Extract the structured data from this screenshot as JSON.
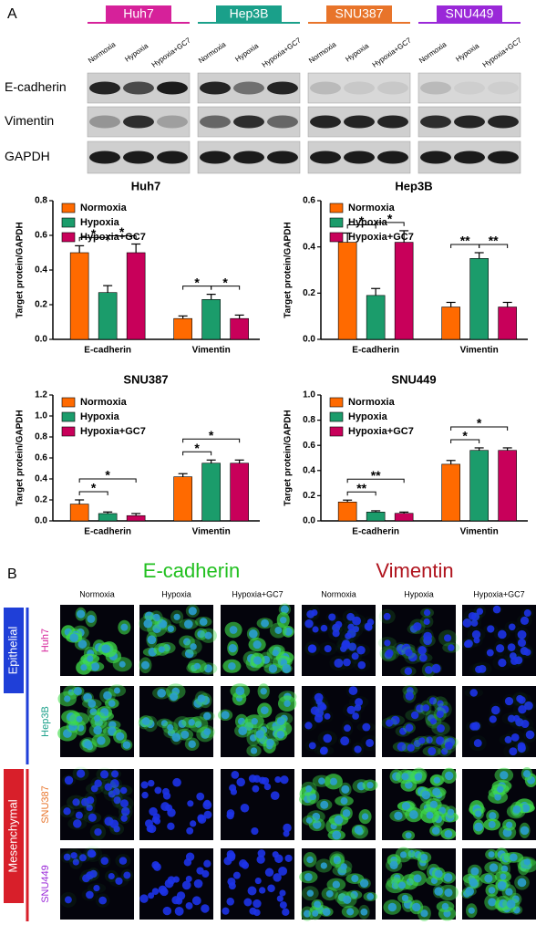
{
  "panel_a": {
    "label": "A",
    "cell_lines": [
      "Huh7",
      "Hep3B",
      "SNU387",
      "SNU449"
    ],
    "cell_line_colors": [
      "#d6219a",
      "#1aa08a",
      "#e8742a",
      "#9a28d8"
    ],
    "conditions": [
      "Normoxia",
      "Hypoxia",
      "Hypoxia+GC7"
    ],
    "proteins": [
      "E-cadherin",
      "Vimentin",
      "GAPDH"
    ]
  },
  "chart_data": [
    {
      "type": "bar",
      "title": "Huh7",
      "y_label": "Target protein/GAPDH",
      "categories": [
        "E-cadherin",
        "Vimentin"
      ],
      "series": [
        {
          "name": "Normoxia",
          "color": "#ff6a00",
          "values": [
            0.5,
            0.12
          ],
          "errors": [
            0.04,
            0.015
          ]
        },
        {
          "name": "Hypoxia",
          "color": "#1b9c6b",
          "values": [
            0.27,
            0.23
          ],
          "errors": [
            0.04,
            0.03
          ]
        },
        {
          "name": "Hypoxia+GC7",
          "color": "#c8005a",
          "values": [
            0.5,
            0.12
          ],
          "errors": [
            0.05,
            0.02
          ]
        }
      ],
      "ylim": [
        0,
        0.8
      ],
      "yticks": [
        {
          "value": 0,
          "label": "0.0"
        },
        0.2,
        0.4,
        0.6,
        0.8
      ],
      "annotations": [
        "*",
        "*",
        "*",
        "*"
      ]
    },
    {
      "type": "bar",
      "title": "Hep3B",
      "y_label": "Target protein/GAPDH",
      "categories": [
        "E-cadherin",
        "Vimentin"
      ],
      "series": [
        {
          "name": "Normoxia",
          "color": "#ff6a00",
          "values": [
            0.42,
            0.14
          ],
          "errors": [
            0.04,
            0.02
          ]
        },
        {
          "name": "Hypoxia",
          "color": "#1b9c6b",
          "values": [
            0.19,
            0.35
          ],
          "errors": [
            0.03,
            0.025
          ]
        },
        {
          "name": "Hypoxia+GC7",
          "color": "#c8005a",
          "values": [
            0.42,
            0.14
          ],
          "errors": [
            0.05,
            0.02
          ]
        }
      ],
      "ylim": [
        0,
        0.6
      ],
      "yticks": [
        {
          "value": 0,
          "label": "0.0"
        },
        0.2,
        0.4,
        0.6
      ],
      "annotations": [
        "*",
        "*",
        "**",
        "**"
      ]
    },
    {
      "type": "bar",
      "title": "SNU387",
      "y_label": "Target protein/GAPDH",
      "categories": [
        "E-cadherin",
        "Vimentin"
      ],
      "series": [
        {
          "name": "Normoxia",
          "color": "#ff6a00",
          "values": [
            0.16,
            0.42
          ],
          "errors": [
            0.04,
            0.03
          ]
        },
        {
          "name": "Hypoxia",
          "color": "#1b9c6b",
          "values": [
            0.07,
            0.55
          ],
          "errors": [
            0.015,
            0.03
          ]
        },
        {
          "name": "Hypoxia+GC7",
          "color": "#c8005a",
          "values": [
            0.05,
            0.55
          ],
          "errors": [
            0.02,
            0.03
          ]
        }
      ],
      "ylim": [
        0,
        1.2
      ],
      "yticks": [
        {
          "value": 0,
          "label": "0.0"
        },
        0.2,
        0.4,
        0.6,
        0.8,
        {
          "value": 1,
          "label": "1.0"
        },
        1.2
      ],
      "annotations": [
        "*",
        "*",
        "*",
        "*"
      ]
    },
    {
      "type": "bar",
      "title": "SNU449",
      "y_label": "Target protein/GAPDH",
      "categories": [
        "E-cadherin",
        "Vimentin"
      ],
      "series": [
        {
          "name": "Normoxia",
          "color": "#ff6a00",
          "values": [
            0.15,
            0.45
          ],
          "errors": [
            0.015,
            0.03
          ]
        },
        {
          "name": "Hypoxia",
          "color": "#1b9c6b",
          "values": [
            0.07,
            0.56
          ],
          "errors": [
            0.01,
            0.02
          ]
        },
        {
          "name": "Hypoxia+GC7",
          "color": "#c8005a",
          "values": [
            0.06,
            0.56
          ],
          "errors": [
            0.01,
            0.02
          ]
        }
      ],
      "ylim": [
        0,
        1
      ],
      "yticks": [
        {
          "value": 0,
          "label": "0.0"
        },
        0.2,
        0.4,
        0.6,
        0.8,
        {
          "value": 1,
          "label": "1.0"
        }
      ],
      "annotations": [
        "**",
        "**",
        "*",
        "*"
      ]
    }
  ],
  "panel_b": {
    "label": "B",
    "stains": [
      "E-cadherin",
      "Vimentin"
    ],
    "stain_colors": [
      "#22c020",
      "#b0141e"
    ],
    "conditions": [
      "Normoxia",
      "Hypoxia",
      "Hypoxia+GC7"
    ],
    "groups": [
      "Epithelial",
      "Mesenchymal"
    ],
    "group_colors": [
      "#1f3fd8",
      "#d81f2a"
    ],
    "cell_lines": [
      "Huh7",
      "Hep3B",
      "SNU387",
      "SNU449"
    ]
  }
}
